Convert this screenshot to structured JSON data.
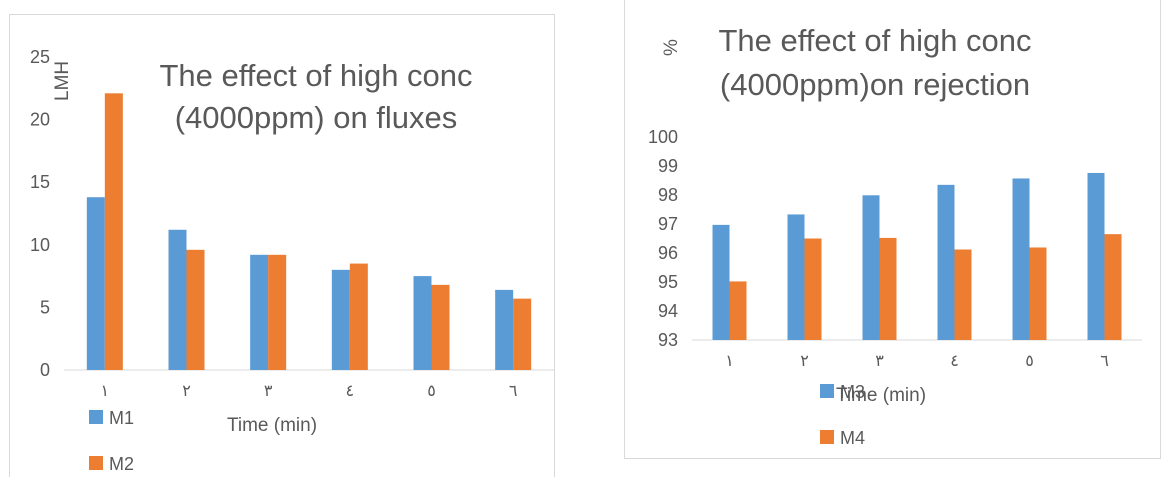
{
  "chart_data": [
    {
      "type": "bar",
      "title_lines": [
        "The effect of high conc",
        "(4000ppm) on fluxes"
      ],
      "xlabel": "Time (min)",
      "ylabel": "LMH",
      "categories": [
        "١",
        "٢",
        "٣",
        "٤",
        "٥",
        "٦"
      ],
      "ylim": [
        0,
        25
      ],
      "yticks": [
        0,
        5,
        10,
        15,
        20,
        25
      ],
      "gridlines": false,
      "legend_position": "bottom-left",
      "series": [
        {
          "name": "M1",
          "color": "#5b9bd5",
          "values": [
            13.8,
            11.2,
            9.2,
            8.0,
            7.5,
            6.4
          ]
        },
        {
          "name": "M2",
          "color": "#ed7d31",
          "values": [
            22.1,
            9.6,
            9.2,
            8.5,
            6.8,
            5.7
          ]
        }
      ]
    },
    {
      "type": "bar",
      "title_lines": [
        "The effect of high conc",
        "(4000ppm)on rejection"
      ],
      "xlabel": "Time (min)",
      "ylabel": "%",
      "categories": [
        "١",
        "٢",
        "٣",
        "٤",
        "٥",
        "٦"
      ],
      "ylim": [
        93,
        100
      ],
      "yticks": [
        93,
        94,
        95,
        96,
        97,
        98,
        99,
        100
      ],
      "gridlines": false,
      "legend_position": "bottom-left",
      "series": [
        {
          "name": "M3",
          "color": "#5b9bd5",
          "values": [
            96.97,
            97.33,
            97.99,
            98.35,
            98.57,
            98.76
          ]
        },
        {
          "name": "M4",
          "color": "#ed7d31",
          "values": [
            95.02,
            96.5,
            96.52,
            96.12,
            96.19,
            96.65
          ]
        }
      ]
    }
  ]
}
